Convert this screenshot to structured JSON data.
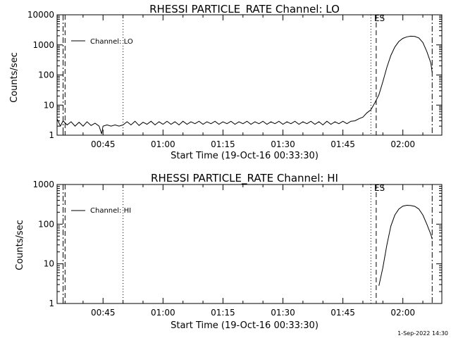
{
  "footer_timestamp": "1-Sep-2022 14:30",
  "chart_data": [
    {
      "type": "line",
      "title": "RHESSI PARTICLE_RATE Channel: LO",
      "xlabel": "Start Time (19-Oct-16 00:33:30)",
      "ylabel": "Counts/sec",
      "yscale": "log",
      "ylim": [
        1,
        10000
      ],
      "xlim": [
        "00:33:30",
        "02:09:45"
      ],
      "x_ticks": [
        "00:45",
        "01:00",
        "01:15",
        "01:30",
        "01:45",
        "02:00"
      ],
      "y_ticks": [
        "1",
        "10",
        "100",
        "1000",
        "10000"
      ],
      "legend": {
        "position": "top-left",
        "entries": [
          "Channel: LO"
        ]
      },
      "markers": [
        {
          "time": "00:35:00",
          "style": "dash-dot"
        },
        {
          "time": "00:35:30",
          "style": "dashed"
        },
        {
          "time": "00:50:00",
          "style": "dotted"
        },
        {
          "time": "01:52:00",
          "style": "dotted"
        },
        {
          "time": "01:53:20",
          "style": "dashed",
          "label": "ES"
        },
        {
          "time": "02:07:20",
          "style": "dash-dot"
        }
      ],
      "series": [
        {
          "name": "Channel: LO",
          "points": [
            [
              "00:33:30",
              3.5
            ],
            [
              "00:34:20",
              2.0
            ],
            [
              "00:35:00",
              3.0
            ],
            [
              "00:36:00",
              2.2
            ],
            [
              "00:37:00",
              2.8
            ],
            [
              "00:38:00",
              2.0
            ],
            [
              "00:39:00",
              2.7
            ],
            [
              "00:40:00",
              2.0
            ],
            [
              "00:41:00",
              2.8
            ],
            [
              "00:42:00",
              2.1
            ],
            [
              "00:43:00",
              2.5
            ],
            [
              "00:44:00",
              2.0
            ],
            [
              "00:44:40",
              1.1
            ],
            [
              "00:45:00",
              2.0
            ],
            [
              "00:46:00",
              2.2
            ],
            [
              "00:47:00",
              2.0
            ],
            [
              "00:48:00",
              2.2
            ],
            [
              "00:49:00",
              2.0
            ],
            [
              "00:50:00",
              2.2
            ],
            [
              "00:51:00",
              2.8
            ],
            [
              "00:52:00",
              2.2
            ],
            [
              "00:53:00",
              2.9
            ],
            [
              "00:54:00",
              2.1
            ],
            [
              "00:55:00",
              2.7
            ],
            [
              "00:56:00",
              2.3
            ],
            [
              "00:57:00",
              2.9
            ],
            [
              "00:58:00",
              2.2
            ],
            [
              "00:59:00",
              2.8
            ],
            [
              "01:00:00",
              2.3
            ],
            [
              "01:01:00",
              2.9
            ],
            [
              "01:02:00",
              2.3
            ],
            [
              "01:03:00",
              2.8
            ],
            [
              "01:04:00",
              2.2
            ],
            [
              "01:05:00",
              2.9
            ],
            [
              "01:06:00",
              2.3
            ],
            [
              "01:07:00",
              2.8
            ],
            [
              "01:08:00",
              2.4
            ],
            [
              "01:09:00",
              2.9
            ],
            [
              "01:10:00",
              2.3
            ],
            [
              "01:11:00",
              2.8
            ],
            [
              "01:12:00",
              2.4
            ],
            [
              "01:13:00",
              2.9
            ],
            [
              "01:14:00",
              2.3
            ],
            [
              "01:15:00",
              2.8
            ],
            [
              "01:16:00",
              2.4
            ],
            [
              "01:17:00",
              2.9
            ],
            [
              "01:18:00",
              2.3
            ],
            [
              "01:19:00",
              2.8
            ],
            [
              "01:20:00",
              2.4
            ],
            [
              "01:21:00",
              2.9
            ],
            [
              "01:22:00",
              2.3
            ],
            [
              "01:23:00",
              2.8
            ],
            [
              "01:24:00",
              2.4
            ],
            [
              "01:25:00",
              2.9
            ],
            [
              "01:26:00",
              2.3
            ],
            [
              "01:27:00",
              2.8
            ],
            [
              "01:28:00",
              2.4
            ],
            [
              "01:29:00",
              2.9
            ],
            [
              "01:30:00",
              2.3
            ],
            [
              "01:31:00",
              2.8
            ],
            [
              "01:32:00",
              2.4
            ],
            [
              "01:33:00",
              2.9
            ],
            [
              "01:34:00",
              2.3
            ],
            [
              "01:35:00",
              2.8
            ],
            [
              "01:36:00",
              2.4
            ],
            [
              "01:37:00",
              2.9
            ],
            [
              "01:38:00",
              2.3
            ],
            [
              "01:39:00",
              2.8
            ],
            [
              "01:40:00",
              2.2
            ],
            [
              "01:41:00",
              2.9
            ],
            [
              "01:42:00",
              2.3
            ],
            [
              "01:43:00",
              2.8
            ],
            [
              "01:44:00",
              2.4
            ],
            [
              "01:45:00",
              2.9
            ],
            [
              "01:46:00",
              2.4
            ],
            [
              "01:47:00",
              2.9
            ],
            [
              "01:48:00",
              3.0
            ],
            [
              "01:49:00",
              3.5
            ],
            [
              "01:50:00",
              4.0
            ],
            [
              "01:51:00",
              5.5
            ],
            [
              "01:52:00",
              7.0
            ],
            [
              "01:53:00",
              12
            ],
            [
              "01:54:00",
              22
            ],
            [
              "01:55:00",
              60
            ],
            [
              "01:56:00",
              180
            ],
            [
              "01:57:00",
              450
            ],
            [
              "01:58:00",
              850
            ],
            [
              "01:59:00",
              1300
            ],
            [
              "02:00:00",
              1650
            ],
            [
              "02:01:00",
              1850
            ],
            [
              "02:02:00",
              1950
            ],
            [
              "02:03:00",
              1900
            ],
            [
              "02:04:00",
              1700
            ],
            [
              "02:05:00",
              1200
            ],
            [
              "02:06:00",
              600
            ],
            [
              "02:07:00",
              250
            ],
            [
              "02:07:20",
              120
            ]
          ]
        }
      ]
    },
    {
      "type": "line",
      "title": "RHESSI PARTICLE_RATE Channel: HI",
      "xlabel": "Start Time (19-Oct-16 00:33:30)",
      "ylabel": "Counts/sec",
      "yscale": "log",
      "ylim": [
        1,
        1000
      ],
      "xlim": [
        "00:33:30",
        "02:09:45"
      ],
      "x_ticks": [
        "00:45",
        "01:00",
        "01:15",
        "01:30",
        "01:45",
        "02:00"
      ],
      "y_ticks": [
        "1",
        "10",
        "100",
        "1000"
      ],
      "legend": {
        "position": "top-left",
        "entries": [
          "Channel: HI"
        ]
      },
      "markers": [
        {
          "time": "00:35:00",
          "style": "dash-dot"
        },
        {
          "time": "00:35:30",
          "style": "dashed"
        },
        {
          "time": "00:50:00",
          "style": "dotted"
        },
        {
          "time": "01:52:00",
          "style": "dotted"
        },
        {
          "time": "01:53:20",
          "style": "dashed",
          "label": "ES"
        },
        {
          "time": "02:07:20",
          "style": "dash-dot"
        }
      ],
      "series": [
        {
          "name": "Channel: HI",
          "points": [
            [
              "01:54:00",
              2.8
            ],
            [
              "01:55:00",
              8
            ],
            [
              "01:56:00",
              30
            ],
            [
              "01:57:00",
              90
            ],
            [
              "01:58:00",
              170
            ],
            [
              "01:59:00",
              240
            ],
            [
              "02:00:00",
              285
            ],
            [
              "02:01:00",
              300
            ],
            [
              "02:02:00",
              295
            ],
            [
              "02:03:00",
              280
            ],
            [
              "02:04:00",
              240
            ],
            [
              "02:05:00",
              170
            ],
            [
              "02:06:00",
              100
            ],
            [
              "02:07:00",
              55
            ],
            [
              "02:07:20",
              42
            ]
          ]
        }
      ]
    }
  ]
}
